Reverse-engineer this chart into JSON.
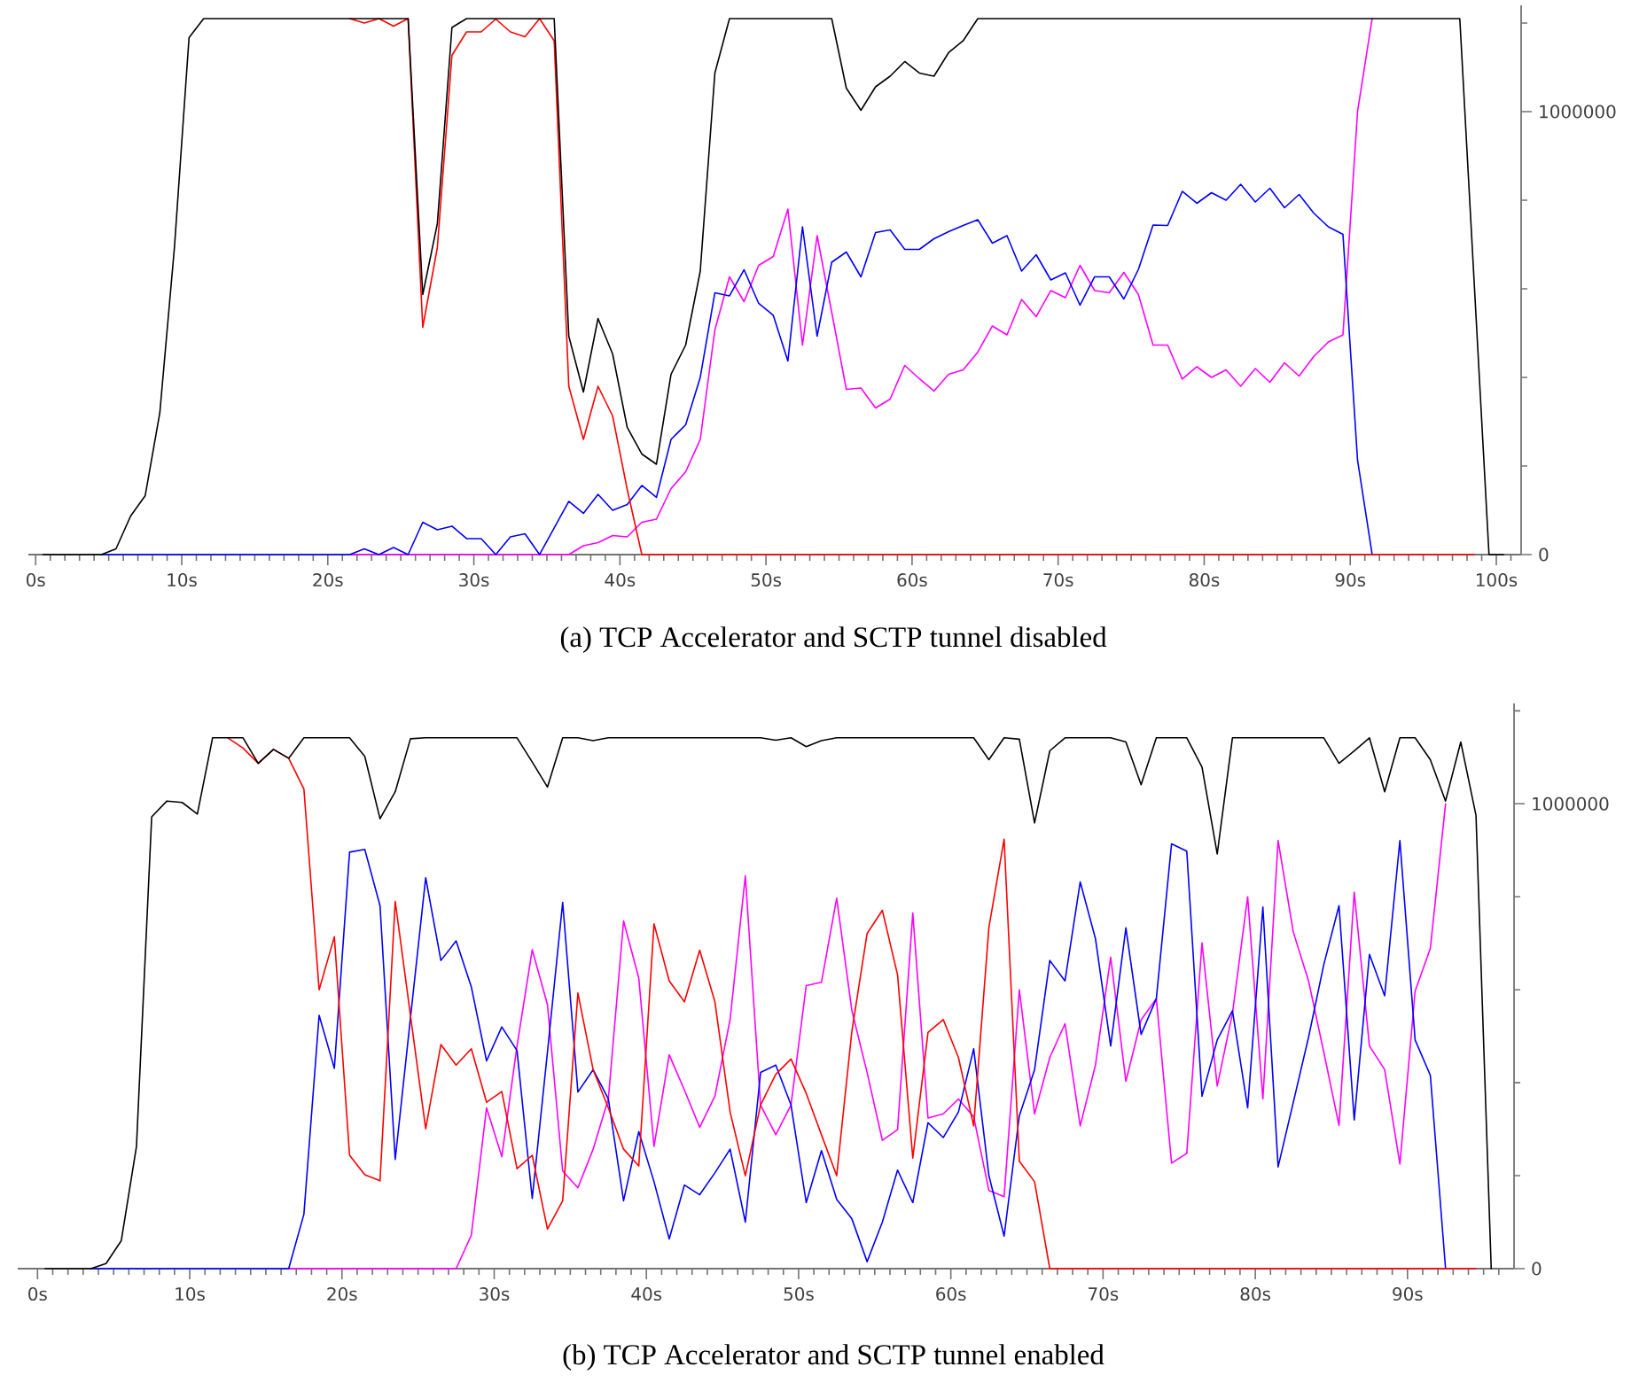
{
  "chart_data": [
    {
      "type": "line",
      "title": "(a) TCP Accelerator and SCTP tunnel disabled",
      "line_style": "solid",
      "xlim": [
        -0.5,
        101.7
      ],
      "ylim": [
        0,
        1240000
      ],
      "xticks": [
        {
          "value": 0,
          "label": "0s"
        },
        {
          "value": 1,
          "label": null
        },
        {
          "value": 2,
          "label": null
        },
        {
          "value": 3,
          "label": null
        },
        {
          "value": 4,
          "label": null
        },
        {
          "value": 5,
          "label": null
        },
        {
          "value": 6,
          "label": null
        },
        {
          "value": 7,
          "label": null
        },
        {
          "value": 8,
          "label": null
        },
        {
          "value": 9,
          "label": null
        },
        {
          "value": 10,
          "label": "10s"
        },
        {
          "value": 11,
          "label": null
        },
        {
          "value": 12,
          "label": null
        },
        {
          "value": 13,
          "label": null
        },
        {
          "value": 14,
          "label": null
        },
        {
          "value": 15,
          "label": null
        },
        {
          "value": 16,
          "label": null
        },
        {
          "value": 17,
          "label": null
        },
        {
          "value": 18,
          "label": null
        },
        {
          "value": 19,
          "label": null
        },
        {
          "value": 20,
          "label": "20s"
        },
        {
          "value": 21,
          "label": null
        },
        {
          "value": 22,
          "label": null
        },
        {
          "value": 23,
          "label": null
        },
        {
          "value": 24,
          "label": null
        },
        {
          "value": 25,
          "label": null
        },
        {
          "value": 26,
          "label": null
        },
        {
          "value": 27,
          "label": null
        },
        {
          "value": 28,
          "label": null
        },
        {
          "value": 29,
          "label": null
        },
        {
          "value": 30,
          "label": "30s"
        },
        {
          "value": 31,
          "label": null
        },
        {
          "value": 32,
          "label": null
        },
        {
          "value": 33,
          "label": null
        },
        {
          "value": 34,
          "label": null
        },
        {
          "value": 35,
          "label": null
        },
        {
          "value": 36,
          "label": null
        },
        {
          "value": 37,
          "label": null
        },
        {
          "value": 38,
          "label": null
        },
        {
          "value": 39,
          "label": null
        },
        {
          "value": 40,
          "label": "40s"
        },
        {
          "value": 41,
          "label": null
        },
        {
          "value": 42,
          "label": null
        },
        {
          "value": 43,
          "label": null
        },
        {
          "value": 44,
          "label": null
        },
        {
          "value": 45,
          "label": null
        },
        {
          "value": 46,
          "label": null
        },
        {
          "value": 47,
          "label": null
        },
        {
          "value": 48,
          "label": null
        },
        {
          "value": 49,
          "label": null
        },
        {
          "value": 50,
          "label": "50s"
        },
        {
          "value": 51,
          "label": null
        },
        {
          "value": 52,
          "label": null
        },
        {
          "value": 53,
          "label": null
        },
        {
          "value": 54,
          "label": null
        },
        {
          "value": 55,
          "label": null
        },
        {
          "value": 56,
          "label": null
        },
        {
          "value": 57,
          "label": null
        },
        {
          "value": 58,
          "label": null
        },
        {
          "value": 59,
          "label": null
        },
        {
          "value": 60,
          "label": "60s"
        },
        {
          "value": 61,
          "label": null
        },
        {
          "value": 62,
          "label": null
        },
        {
          "value": 63,
          "label": null
        },
        {
          "value": 64,
          "label": null
        },
        {
          "value": 65,
          "label": null
        },
        {
          "value": 66,
          "label": null
        },
        {
          "value": 67,
          "label": null
        },
        {
          "value": 68,
          "label": null
        },
        {
          "value": 69,
          "label": null
        },
        {
          "value": 70,
          "label": "70s"
        },
        {
          "value": 71,
          "label": null
        },
        {
          "value": 72,
          "label": null
        },
        {
          "value": 73,
          "label": null
        },
        {
          "value": 74,
          "label": null
        },
        {
          "value": 75,
          "label": null
        },
        {
          "value": 76,
          "label": null
        },
        {
          "value": 77,
          "label": null
        },
        {
          "value": 78,
          "label": null
        },
        {
          "value": 79,
          "label": null
        },
        {
          "value": 80,
          "label": "80s"
        },
        {
          "value": 81,
          "label": null
        },
        {
          "value": 82,
          "label": null
        },
        {
          "value": 83,
          "label": null
        },
        {
          "value": 84,
          "label": null
        },
        {
          "value": 85,
          "label": null
        },
        {
          "value": 86,
          "label": null
        },
        {
          "value": 87,
          "label": null
        },
        {
          "value": 88,
          "label": null
        },
        {
          "value": 89,
          "label": null
        },
        {
          "value": 90,
          "label": "90s"
        },
        {
          "value": 91,
          "label": null
        },
        {
          "value": 92,
          "label": null
        },
        {
          "value": 93,
          "label": null
        },
        {
          "value": 94,
          "label": null
        },
        {
          "value": 95,
          "label": null
        },
        {
          "value": 96,
          "label": null
        },
        {
          "value": 97,
          "label": null
        },
        {
          "value": 98,
          "label": null
        },
        {
          "value": 99,
          "label": null
        },
        {
          "value": 100,
          "label": "100s"
        },
        {
          "value": 101,
          "label": null
        }
      ],
      "yticks": [
        0,
        {
          "value": 200000,
          "label": null
        },
        {
          "value": 400000,
          "label": null
        },
        {
          "value": 600000,
          "label": null
        },
        {
          "value": 800000,
          "label": null
        },
        1000000,
        {
          "value": 1200000,
          "label": null
        }
      ],
      "x": [
        0.5,
        1.5,
        2.5,
        3.5,
        4.5,
        5.5,
        6.5,
        7.5,
        8.5,
        9.5,
        10.5,
        11.5,
        12.5,
        13.5,
        14.5,
        15.5,
        16.5,
        17.5,
        18.5,
        19.5,
        20.5,
        21.5,
        22.5,
        23.5,
        24.5,
        25.5,
        26.5,
        27.5,
        28.5,
        29.5,
        30.5,
        31.5,
        32.5,
        33.5,
        34.5,
        35.5,
        36.5,
        37.5,
        38.5,
        39.5,
        40.5,
        41.5,
        42.5,
        43.5,
        44.5,
        45.5,
        46.5,
        47.5,
        48.5,
        49.5,
        50.5,
        51.5,
        52.5,
        53.5,
        54.5,
        55.5,
        56.5,
        57.5,
        58.5,
        59.5,
        60.5,
        61.5,
        62.5,
        63.5,
        64.5,
        65.5,
        66.5,
        67.5,
        68.5,
        69.5,
        70.5,
        71.5,
        72.5,
        73.5,
        74.5,
        75.5,
        76.5,
        77.5,
        78.5,
        79.5,
        80.5,
        81.5,
        82.5,
        83.5,
        84.5,
        85.5,
        86.5,
        87.5,
        88.5,
        89.5,
        90.5,
        91.5,
        92.5,
        93.5,
        94.5,
        95.5,
        96.5,
        97.5,
        98.5,
        99.5,
        100.5
      ],
      "series": [
        {
          "color": "#ff00ff",
          "values": [
            null,
            null,
            null,
            null,
            null,
            null,
            null,
            null,
            null,
            null,
            null,
            null,
            null,
            null,
            null,
            null,
            null,
            null,
            null,
            null,
            null,
            0,
            0,
            0,
            0,
            0,
            0,
            0,
            0,
            0,
            0,
            0,
            0,
            0,
            0,
            0,
            0,
            20000,
            27000,
            43000,
            40000,
            73000,
            80000,
            149000,
            187000,
            260000,
            507000,
            627000,
            571000,
            653000,
            673000,
            780000,
            473000,
            720000,
            547000,
            373000,
            376000,
            331000,
            351000,
            427000,
            397000,
            369000,
            407000,
            417000,
            457000,
            516000,
            496000,
            576000,
            537000,
            596000,
            580000,
            653000,
            596000,
            591000,
            637000,
            587000,
            473000,
            473000,
            396000,
            424000,
            400000,
            417000,
            380000,
            420000,
            389000,
            433000,
            403000,
            447000,
            480000,
            496000,
            1000000,
            1210000,
            null,
            null,
            null,
            null,
            null,
            null,
            null,
            null,
            null
          ]
        },
        {
          "color": "#0000ff",
          "values": [
            null,
            null,
            null,
            null,
            0,
            0,
            0,
            0,
            0,
            0,
            0,
            0,
            0,
            0,
            0,
            0,
            0,
            0,
            0,
            0,
            0,
            0,
            13000,
            0,
            16000,
            0,
            73000,
            56000,
            64000,
            36000,
            36000,
            0,
            40000,
            47000,
            0,
            60000,
            120000,
            93000,
            136000,
            100000,
            113000,
            156000,
            129000,
            260000,
            293000,
            400000,
            591000,
            584000,
            643000,
            567000,
            540000,
            437000,
            740000,
            493000,
            660000,
            683000,
            627000,
            727000,
            733000,
            689000,
            689000,
            713000,
            729000,
            743000,
            756000,
            703000,
            720000,
            640000,
            677000,
            620000,
            636000,
            563000,
            627000,
            627000,
            577000,
            644000,
            744000,
            743000,
            820000,
            793000,
            817000,
            800000,
            836000,
            796000,
            827000,
            783000,
            813000,
            771000,
            740000,
            723000,
            213000,
            0,
            null,
            null,
            null,
            null,
            null,
            null,
            null,
            null,
            null
          ]
        },
        {
          "color": "#ff0000",
          "values": [
            null,
            null,
            null,
            null,
            null,
            null,
            null,
            null,
            null,
            null,
            null,
            null,
            null,
            null,
            null,
            null,
            null,
            null,
            null,
            null,
            null,
            1210000,
            1200000,
            1210000,
            1193000,
            1210000,
            513000,
            693000,
            1127000,
            1180000,
            1180000,
            1209000,
            1180000,
            1169000,
            1210000,
            1160000,
            380000,
            260000,
            380000,
            313000,
            147000,
            0,
            0,
            0,
            0,
            0,
            0,
            0,
            0,
            0,
            0,
            0,
            0,
            0,
            0,
            0,
            0,
            0,
            0,
            0,
            0,
            0,
            0,
            0,
            0,
            0,
            0,
            0,
            0,
            0,
            0,
            0,
            0,
            0,
            0,
            0,
            0,
            0,
            0,
            0,
            0,
            0,
            0,
            0,
            0,
            0,
            0,
            0,
            0,
            0,
            0,
            0,
            0,
            0,
            0,
            0,
            0,
            0,
            0,
            null,
            null
          ]
        },
        {
          "color": "#000000",
          "values": [
            0,
            0,
            0,
            0,
            0,
            13000,
            87000,
            133000,
            320000,
            693000,
            1167000,
            1210000,
            1210000,
            1210000,
            1210000,
            1210000,
            1210000,
            1210000,
            1210000,
            1210000,
            1210000,
            1210000,
            1210000,
            1210000,
            1210000,
            1210000,
            587000,
            747000,
            1190000,
            1210000,
            1210000,
            1210000,
            1210000,
            1210000,
            1210000,
            1210000,
            493000,
            367000,
            533000,
            453000,
            287000,
            227000,
            204000,
            407000,
            473000,
            640000,
            1087000,
            1210000,
            1210000,
            1210000,
            1210000,
            1210000,
            1210000,
            1210000,
            1210000,
            1053000,
            1003000,
            1056000,
            1080000,
            1113000,
            1087000,
            1080000,
            1133000,
            1160000,
            1210000,
            1210000,
            1210000,
            1210000,
            1210000,
            1210000,
            1210000,
            1210000,
            1210000,
            1210000,
            1210000,
            1210000,
            1210000,
            1210000,
            1210000,
            1210000,
            1210000,
            1210000,
            1210000,
            1210000,
            1210000,
            1210000,
            1210000,
            1210000,
            1210000,
            1210000,
            1210000,
            1210000,
            1210000,
            1210000,
            1210000,
            1210000,
            1210000,
            1210000,
            605000,
            0,
            0
          ]
        }
      ]
    },
    {
      "type": "line",
      "title": "(b) TCP Accelerator and SCTP tunnel enabled",
      "line_style": "solid",
      "xlim": [
        -1.3,
        97
      ],
      "ylim": [
        0,
        1216000
      ],
      "xticks": [
        {
          "value": 0,
          "label": "0s"
        },
        {
          "value": 1,
          "label": null
        },
        {
          "value": 2,
          "label": null
        },
        {
          "value": 3,
          "label": null
        },
        {
          "value": 4,
          "label": null
        },
        {
          "value": 5,
          "label": null
        },
        {
          "value": 6,
          "label": null
        },
        {
          "value": 7,
          "label": null
        },
        {
          "value": 8,
          "label": null
        },
        {
          "value": 9,
          "label": null
        },
        {
          "value": 10,
          "label": "10s"
        },
        {
          "value": 11,
          "label": null
        },
        {
          "value": 12,
          "label": null
        },
        {
          "value": 13,
          "label": null
        },
        {
          "value": 14,
          "label": null
        },
        {
          "value": 15,
          "label": null
        },
        {
          "value": 16,
          "label": null
        },
        {
          "value": 17,
          "label": null
        },
        {
          "value": 18,
          "label": null
        },
        {
          "value": 19,
          "label": null
        },
        {
          "value": 20,
          "label": "20s"
        },
        {
          "value": 21,
          "label": null
        },
        {
          "value": 22,
          "label": null
        },
        {
          "value": 23,
          "label": null
        },
        {
          "value": 24,
          "label": null
        },
        {
          "value": 25,
          "label": null
        },
        {
          "value": 26,
          "label": null
        },
        {
          "value": 27,
          "label": null
        },
        {
          "value": 28,
          "label": null
        },
        {
          "value": 29,
          "label": null
        },
        {
          "value": 30,
          "label": "30s"
        },
        {
          "value": 31,
          "label": null
        },
        {
          "value": 32,
          "label": null
        },
        {
          "value": 33,
          "label": null
        },
        {
          "value": 34,
          "label": null
        },
        {
          "value": 35,
          "label": null
        },
        {
          "value": 36,
          "label": null
        },
        {
          "value": 37,
          "label": null
        },
        {
          "value": 38,
          "label": null
        },
        {
          "value": 39,
          "label": null
        },
        {
          "value": 40,
          "label": "40s"
        },
        {
          "value": 41,
          "label": null
        },
        {
          "value": 42,
          "label": null
        },
        {
          "value": 43,
          "label": null
        },
        {
          "value": 44,
          "label": null
        },
        {
          "value": 45,
          "label": null
        },
        {
          "value": 46,
          "label": null
        },
        {
          "value": 47,
          "label": null
        },
        {
          "value": 48,
          "label": null
        },
        {
          "value": 49,
          "label": null
        },
        {
          "value": 50,
          "label": "50s"
        },
        {
          "value": 51,
          "label": null
        },
        {
          "value": 52,
          "label": null
        },
        {
          "value": 53,
          "label": null
        },
        {
          "value": 54,
          "label": null
        },
        {
          "value": 55,
          "label": null
        },
        {
          "value": 56,
          "label": null
        },
        {
          "value": 57,
          "label": null
        },
        {
          "value": 58,
          "label": null
        },
        {
          "value": 59,
          "label": null
        },
        {
          "value": 60,
          "label": "60s"
        },
        {
          "value": 61,
          "label": null
        },
        {
          "value": 62,
          "label": null
        },
        {
          "value": 63,
          "label": null
        },
        {
          "value": 64,
          "label": null
        },
        {
          "value": 65,
          "label": null
        },
        {
          "value": 66,
          "label": null
        },
        {
          "value": 67,
          "label": null
        },
        {
          "value": 68,
          "label": null
        },
        {
          "value": 69,
          "label": null
        },
        {
          "value": 70,
          "label": "70s"
        },
        {
          "value": 71,
          "label": null
        },
        {
          "value": 72,
          "label": null
        },
        {
          "value": 73,
          "label": null
        },
        {
          "value": 74,
          "label": null
        },
        {
          "value": 75,
          "label": null
        },
        {
          "value": 76,
          "label": null
        },
        {
          "value": 77,
          "label": null
        },
        {
          "value": 78,
          "label": null
        },
        {
          "value": 79,
          "label": null
        },
        {
          "value": 80,
          "label": "80s"
        },
        {
          "value": 81,
          "label": null
        },
        {
          "value": 82,
          "label": null
        },
        {
          "value": 83,
          "label": null
        },
        {
          "value": 84,
          "label": null
        },
        {
          "value": 85,
          "label": null
        },
        {
          "value": 86,
          "label": null
        },
        {
          "value": 87,
          "label": null
        },
        {
          "value": 88,
          "label": null
        },
        {
          "value": 89,
          "label": null
        },
        {
          "value": 90,
          "label": "90s"
        },
        {
          "value": 91,
          "label": null
        },
        {
          "value": 92,
          "label": null
        },
        {
          "value": 93,
          "label": null
        },
        {
          "value": 94,
          "label": null
        },
        {
          "value": 95,
          "label": null
        },
        {
          "value": 96,
          "label": null
        }
      ],
      "yticks": [
        0,
        {
          "value": 200000,
          "label": null
        },
        {
          "value": 400000,
          "label": null
        },
        {
          "value": 600000,
          "label": null
        },
        {
          "value": 800000,
          "label": null
        },
        1000000,
        {
          "value": 1200000,
          "label": null
        }
      ],
      "x": [
        0.5,
        1.5,
        2.5,
        3.5,
        4.5,
        5.5,
        6.5,
        7.5,
        8.5,
        9.5,
        10.5,
        11.5,
        12.5,
        13.5,
        14.5,
        15.5,
        16.5,
        17.5,
        18.5,
        19.5,
        20.5,
        21.5,
        22.5,
        23.5,
        24.5,
        25.5,
        26.5,
        27.5,
        28.5,
        29.5,
        30.5,
        31.5,
        32.5,
        33.5,
        34.5,
        35.5,
        36.5,
        37.5,
        38.5,
        39.5,
        40.5,
        41.5,
        42.5,
        43.5,
        44.5,
        45.5,
        46.5,
        47.5,
        48.5,
        49.5,
        50.5,
        51.5,
        52.5,
        53.5,
        54.5,
        55.5,
        56.5,
        57.5,
        58.5,
        59.5,
        60.5,
        61.5,
        62.5,
        63.5,
        64.5,
        65.5,
        66.5,
        67.5,
        68.5,
        69.5,
        70.5,
        71.5,
        72.5,
        73.5,
        74.5,
        75.5,
        76.5,
        77.5,
        78.5,
        79.5,
        80.5,
        81.5,
        82.5,
        83.5,
        84.5,
        85.5,
        86.5,
        87.5,
        88.5,
        89.5,
        90.5,
        91.5,
        92.5,
        93.5,
        94.5,
        95.5
      ],
      "series": [
        {
          "color": "#ff00ff",
          "values": [
            null,
            null,
            null,
            null,
            null,
            null,
            null,
            null,
            null,
            null,
            null,
            null,
            null,
            null,
            null,
            null,
            0,
            0,
            0,
            0,
            0,
            0,
            0,
            0,
            0,
            0,
            0,
            0,
            72000,
            346000,
            241000,
            479000,
            686000,
            568000,
            210000,
            174000,
            257000,
            365000,
            748000,
            625000,
            263000,
            460000,
            384000,
            304000,
            371000,
            536000,
            845000,
            352000,
            288000,
            352000,
            609000,
            616000,
            797000,
            555000,
            422000,
            276000,
            299000,
            765000,
            324000,
            333000,
            365000,
            327000,
            168000,
            155000,
            600000,
            333000,
            454000,
            527000,
            307000,
            438000,
            670000,
            403000,
            535000,
            581000,
            227000,
            248000,
            701000,
            393000,
            549000,
            800000,
            365000,
            921000,
            724000,
            619000,
            466000,
            308000,
            810000,
            479000,
            428000,
            225000,
            597000,
            689000,
            1000000,
            null,
            null,
            null
          ]
        },
        {
          "color": "#0000ff",
          "values": [
            null,
            null,
            null,
            0,
            0,
            0,
            0,
            0,
            0,
            0,
            0,
            0,
            0,
            0,
            0,
            0,
            0,
            117000,
            545000,
            431000,
            896000,
            902000,
            781000,
            235000,
            539000,
            841000,
            663000,
            705000,
            606000,
            447000,
            520000,
            469000,
            151000,
            466000,
            788000,
            380000,
            428000,
            365000,
            146000,
            295000,
            187000,
            64000,
            180000,
            159000,
            206000,
            257000,
            100000,
            422000,
            438000,
            352000,
            142000,
            254000,
            149000,
            107000,
            15000,
            100000,
            212000,
            142000,
            314000,
            282000,
            337000,
            473000,
            200000,
            70000,
            329000,
            428000,
            663000,
            619000,
            832000,
            710000,
            479000,
            733000,
            504000,
            581000,
            914000,
            898000,
            371000,
            492000,
            555000,
            346000,
            778000,
            219000,
            358000,
            498000,
            654000,
            781000,
            320000,
            676000,
            587000,
            921000,
            492000,
            416000,
            0,
            null,
            null,
            null
          ]
        },
        {
          "color": "#ff0000",
          "values": [
            null,
            null,
            null,
            null,
            null,
            null,
            null,
            null,
            null,
            null,
            null,
            null,
            1142000,
            1120000,
            1087000,
            1117000,
            1098000,
            1032000,
            600000,
            714000,
            244000,
            202000,
            189000,
            790000,
            545000,
            301000,
            482000,
            438000,
            473000,
            358000,
            381000,
            215000,
            244000,
            85000,
            146000,
            593000,
            428000,
            346000,
            257000,
            221000,
            742000,
            619000,
            574000,
            685000,
            574000,
            337000,
            200000,
            352000,
            418000,
            451000,
            377000,
            288000,
            200000,
            511000,
            721000,
            771000,
            632000,
            238000,
            508000,
            536000,
            454000,
            307000,
            734000,
            924000,
            231000,
            187000,
            0,
            0,
            0,
            0,
            0,
            0,
            0,
            0,
            0,
            0,
            0,
            0,
            0,
            0,
            0,
            0,
            0,
            0,
            0,
            0,
            0,
            0,
            0,
            0,
            0,
            0,
            0,
            0,
            0,
            null
          ]
        },
        {
          "color": "#000000",
          "values": [
            0,
            0,
            0,
            0,
            11000,
            60000,
            263000,
            972000,
            1006000,
            1003000,
            978000,
            1142000,
            1142000,
            1142000,
            1087000,
            1117000,
            1098000,
            1142000,
            1142000,
            1142000,
            1142000,
            1102000,
            968000,
            1026000,
            1140000,
            1142000,
            1142000,
            1142000,
            1142000,
            1142000,
            1142000,
            1142000,
            1090000,
            1036000,
            1142000,
            1142000,
            1136000,
            1142000,
            1142000,
            1142000,
            1142000,
            1142000,
            1142000,
            1142000,
            1142000,
            1142000,
            1142000,
            1142000,
            1137000,
            1142000,
            1123000,
            1136000,
            1142000,
            1142000,
            1142000,
            1142000,
            1142000,
            1142000,
            1142000,
            1142000,
            1142000,
            1142000,
            1095000,
            1142000,
            1139000,
            959000,
            1114000,
            1142000,
            1142000,
            1142000,
            1142000,
            1133000,
            1041000,
            1142000,
            1142000,
            1142000,
            1079000,
            892000,
            1142000,
            1142000,
            1142000,
            1142000,
            1142000,
            1142000,
            1142000,
            1087000,
            1114000,
            1142000,
            1026000,
            1142000,
            1142000,
            1095000,
            1006000,
            1133000,
            975000,
            0
          ]
        }
      ]
    }
  ]
}
